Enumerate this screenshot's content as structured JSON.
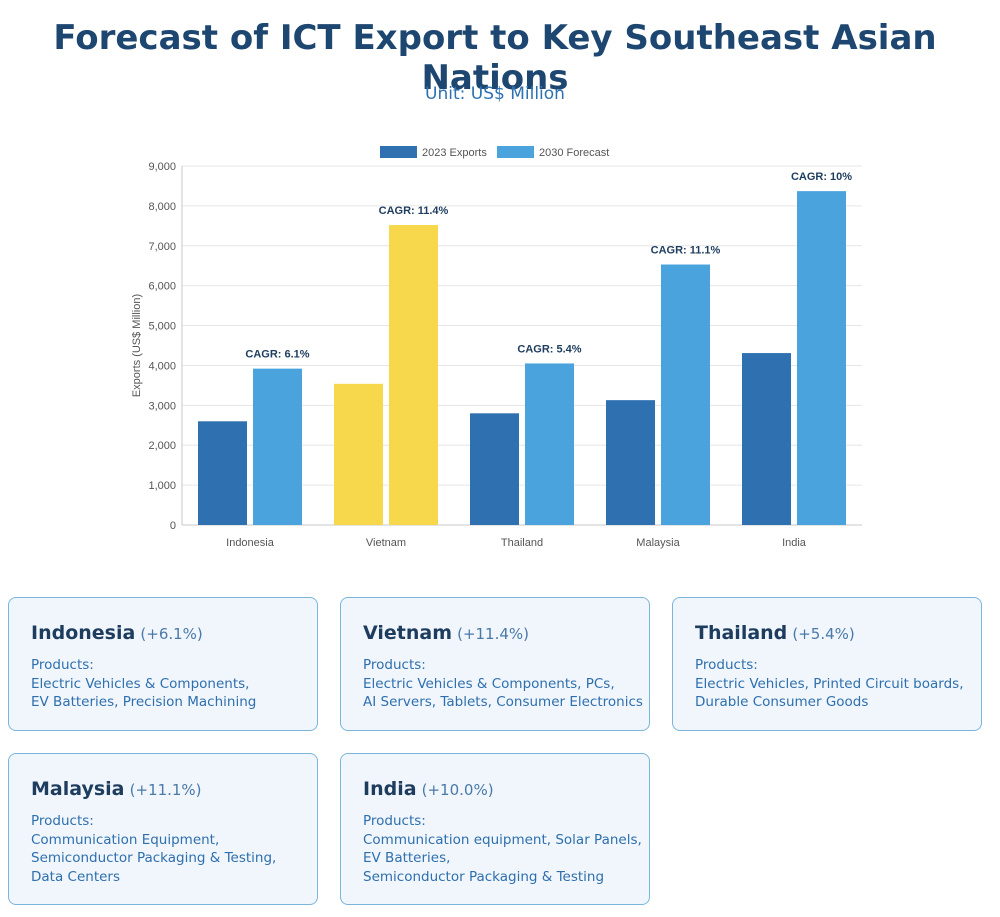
{
  "header": {
    "title": "Forecast of ICT Export to Key Southeast Asian Nations",
    "subtitle": "Unit: US$ Million"
  },
  "colors": {
    "exports_2023": "#2f70b0",
    "forecast_2030": "#4aa3dc",
    "highlight": "#f7d84c",
    "title": "#1d4670"
  },
  "chart_data": {
    "type": "bar",
    "categories": [
      "Indonesia",
      "Vietnam",
      "Thailand",
      "Malaysia",
      "India"
    ],
    "series": [
      {
        "name": "2023 Exports",
        "values": [
          2600,
          3540,
          2800,
          3130,
          4310
        ]
      },
      {
        "name": "2030 Forecast",
        "values": [
          3920,
          7520,
          4050,
          6530,
          8370
        ]
      }
    ],
    "annotations": [
      "CAGR: 6.1%",
      "CAGR: 11.4%",
      "CAGR: 5.4%",
      "CAGR: 11.1%",
      "CAGR: 10%"
    ],
    "highlighted_category": "Vietnam",
    "ylabel": "Exports (US$ Million)",
    "ylim": [
      0,
      9000
    ],
    "yticks": [
      "0",
      "1,000",
      "2,000",
      "3,000",
      "4,000",
      "5,000",
      "6,000",
      "7,000",
      "8,000",
      "9,000"
    ],
    "legend": "top-center",
    "grid": true
  },
  "cards": [
    {
      "name": "Indonesia",
      "growth": "(+6.1%)",
      "label": "Products:",
      "lines": [
        "Electric Vehicles & Components,",
        "EV Batteries, Precision Machining"
      ]
    },
    {
      "name": "Vietnam",
      "growth": "(+11.4%)",
      "label": "Products:",
      "lines": [
        "Electric Vehicles & Components, PCs,",
        "AI Servers, Tablets, Consumer Electronics"
      ]
    },
    {
      "name": "Thailand",
      "growth": "(+5.4%)",
      "label": "Products:",
      "lines": [
        "Electric Vehicles, Printed Circuit boards,",
        "Durable Consumer Goods"
      ]
    },
    {
      "name": "Malaysia",
      "growth": "(+11.1%)",
      "label": "Products:",
      "lines": [
        "Communication Equipment,",
        "Semiconductor Packaging & Testing,",
        "Data Centers"
      ]
    },
    {
      "name": "India",
      "growth": "(+10.0%)",
      "label": "Products:",
      "lines": [
        "Communication equipment, Solar Panels,",
        "EV Batteries,",
        "Semiconductor Packaging & Testing"
      ]
    }
  ]
}
